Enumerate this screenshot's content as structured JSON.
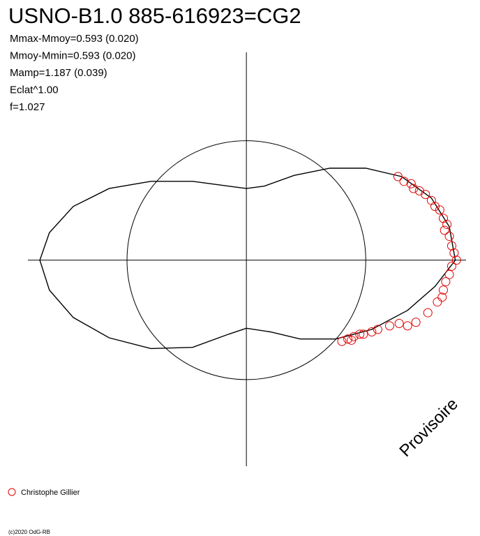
{
  "chart_data": {
    "type": "polar-scatter",
    "title": "USNO-B1.0 885-616923=CG2",
    "stats": [
      "Mmax-Mmoy=0.593 (0.020)",
      "Mmoy-Mmin=0.593 (0.020)",
      "Mamp=1.187 (0.039)",
      "Eclat^1.00",
      "f=1.027"
    ],
    "watermark": "Provisoire",
    "copyright": "(c)2020 OdG-RB",
    "xlim": [
      -1.83,
      1.84
    ],
    "ylim": [
      -1.725,
      1.74
    ],
    "circle_radius": 1,
    "curve": {
      "color": "#000000",
      "x": [
        1.75,
        1.7,
        1.55,
        1.3,
        1.0,
        0.7,
        0.4,
        0.15,
        0.0,
        -0.15,
        -0.45,
        -0.8,
        -1.15,
        -1.45,
        -1.65,
        -1.73,
        -1.65,
        -1.45,
        -1.15,
        -0.8,
        -0.45,
        -0.15,
        0.0,
        0.2,
        0.45,
        0.75,
        1.05,
        1.35,
        1.58,
        1.75
      ],
      "y": [
        0,
        0.28,
        0.52,
        0.7,
        0.77,
        0.77,
        0.71,
        0.62,
        0.6,
        0.62,
        0.66,
        0.66,
        0.6,
        0.45,
        0.23,
        0,
        -0.25,
        -0.48,
        -0.65,
        -0.74,
        -0.73,
        -0.62,
        -0.57,
        -0.6,
        -0.66,
        -0.66,
        -0.58,
        -0.42,
        -0.22,
        0
      ]
    },
    "series": [
      {
        "name": "Christophe Gillier",
        "color": "#e00000",
        "x": [
          1.27,
          1.32,
          1.38,
          1.4,
          1.45,
          1.5,
          1.55,
          1.58,
          1.62,
          1.65,
          1.68,
          1.66,
          1.7,
          1.72,
          1.74,
          1.76,
          1.72,
          1.7,
          1.67,
          1.65,
          1.64,
          1.6,
          1.52,
          1.42,
          1.35,
          1.28,
          1.2,
          1.1,
          1.05,
          0.98,
          0.9,
          0.85,
          0.8,
          0.88,
          0.95
        ],
        "y": [
          0.7,
          0.66,
          0.64,
          0.6,
          0.58,
          0.55,
          0.5,
          0.45,
          0.42,
          0.35,
          0.3,
          0.25,
          0.2,
          0.12,
          0.06,
          0.0,
          -0.05,
          -0.12,
          -0.18,
          -0.25,
          -0.31,
          -0.35,
          -0.44,
          -0.52,
          -0.55,
          -0.53,
          -0.55,
          -0.58,
          -0.6,
          -0.62,
          -0.64,
          -0.66,
          -0.68,
          -0.67,
          -0.62
        ]
      }
    ]
  }
}
